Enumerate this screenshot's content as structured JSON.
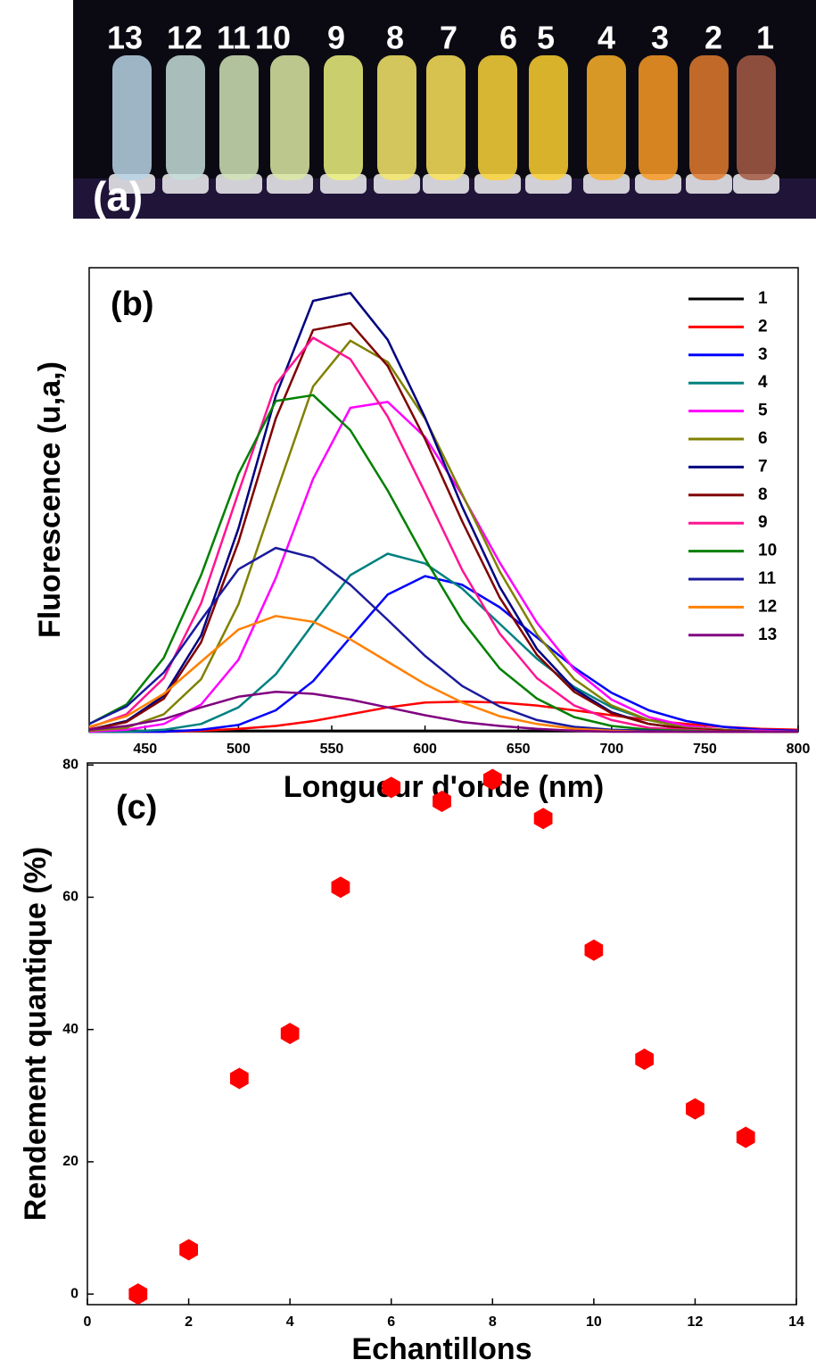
{
  "panel_a": {
    "label": "(a)",
    "vials": [
      {
        "label": "13",
        "color": "#b9d3e6"
      },
      {
        "label": "12",
        "color": "#c5ddd9"
      },
      {
        "label": "11",
        "color": "#cfe3b6"
      },
      {
        "label": "10",
        "color": "#dbe9a2"
      },
      {
        "label": "9",
        "color": "#edf17e"
      },
      {
        "label": "8",
        "color": "#f7e86a"
      },
      {
        "label": "7",
        "color": "#fbe35a"
      },
      {
        "label": "6",
        "color": "#fcd53a"
      },
      {
        "label": "5",
        "color": "#fdd030"
      },
      {
        "label": "4",
        "color": "#fbb12a"
      },
      {
        "label": "3",
        "color": "#f99a25"
      },
      {
        "label": "2",
        "color": "#e07a2e"
      },
      {
        "label": "1",
        "color": "#a55a45"
      }
    ]
  },
  "chart_data": [
    {
      "type": "line",
      "panel_label": "(b)",
      "xlabel": "Longueur d'onde (nm)",
      "ylabel": "Fluorescence (u,a,)",
      "x": [
        420,
        440,
        460,
        480,
        500,
        520,
        540,
        560,
        580,
        600,
        620,
        640,
        660,
        680,
        700,
        720,
        740,
        760,
        780,
        800
      ],
      "xlim": [
        420,
        800
      ],
      "ylim": [
        0,
        4.77
      ],
      "xticks": [
        450,
        500,
        550,
        600,
        650,
        700,
        750,
        800
      ],
      "legend": "upper right",
      "series": [
        {
          "name": "1",
          "color": "#000000",
          "values": [
            0.03,
            0.01,
            0.01,
            0.01,
            0.01,
            0.01,
            0.01,
            0.01,
            0.01,
            0.01,
            0.01,
            0.01,
            0.01,
            0.01,
            0.01,
            0.01,
            0.01,
            0.01,
            0.01,
            0.01
          ]
        },
        {
          "name": "2",
          "color": "#ff0000",
          "values": [
            0,
            0,
            0,
            0.01,
            0.03,
            0.06,
            0.11,
            0.18,
            0.25,
            0.3,
            0.31,
            0.3,
            0.27,
            0.22,
            0.17,
            0.12,
            0.08,
            0.05,
            0.03,
            0.02
          ]
        },
        {
          "name": "3",
          "color": "#0000ff",
          "values": [
            0,
            0,
            0,
            0.02,
            0.07,
            0.22,
            0.52,
            0.97,
            1.41,
            1.6,
            1.51,
            1.28,
            0.97,
            0.66,
            0.4,
            0.22,
            0.11,
            0.05,
            0.02,
            0.01
          ]
        },
        {
          "name": "4",
          "color": "#008080",
          "values": [
            0,
            0,
            0.02,
            0.08,
            0.25,
            0.59,
            1.11,
            1.61,
            1.83,
            1.73,
            1.47,
            1.11,
            0.75,
            0.46,
            0.25,
            0.12,
            0.05,
            0.02,
            0.01,
            0
          ]
        },
        {
          "name": "5",
          "color": "#ff00ff",
          "values": [
            0,
            0.02,
            0.08,
            0.28,
            0.74,
            1.58,
            2.6,
            3.33,
            3.39,
            3.03,
            2.43,
            1.74,
            1.12,
            0.64,
            0.33,
            0.15,
            0.06,
            0.02,
            0.01,
            0
          ]
        },
        {
          "name": "6",
          "color": "#808000",
          "values": [
            0.01,
            0.04,
            0.18,
            0.54,
            1.31,
            2.44,
            3.55,
            4.02,
            3.8,
            3.22,
            2.44,
            1.65,
            1,
            0.54,
            0.27,
            0.12,
            0.04,
            0.02,
            0,
            0
          ]
        },
        {
          "name": "7",
          "color": "#000080",
          "values": [
            0.02,
            0.11,
            0.37,
            0.99,
            2.09,
            3.45,
            4.43,
            4.51,
            4.03,
            3.23,
            2.31,
            1.49,
            0.85,
            0.44,
            0.2,
            0.08,
            0.03,
            0.01,
            0,
            0
          ]
        },
        {
          "name": "8",
          "color": "#800000",
          "values": [
            0.02,
            0.1,
            0.34,
            0.92,
            1.95,
            3.22,
            4.13,
            4.2,
            3.76,
            3.01,
            2.16,
            1.38,
            0.79,
            0.41,
            0.19,
            0.08,
            0.03,
            0.01,
            0,
            0
          ]
        },
        {
          "name": "9",
          "color": "#ff1493",
          "values": [
            0.04,
            0.18,
            0.55,
            1.32,
            2.46,
            3.57,
            4.05,
            3.83,
            3.24,
            2.46,
            1.66,
            1.01,
            0.55,
            0.27,
            0.12,
            0.04,
            0.02,
            0,
            0,
            0
          ]
        },
        {
          "name": "10",
          "color": "#008000",
          "values": [
            0.08,
            0.28,
            0.76,
            1.61,
            2.65,
            3.4,
            3.46,
            3.1,
            2.48,
            1.78,
            1.14,
            0.65,
            0.34,
            0.15,
            0.06,
            0.02,
            0.01,
            0,
            0,
            0
          ]
        },
        {
          "name": "11",
          "color": "#1a1a9e",
          "values": [
            0.08,
            0.26,
            0.61,
            1.15,
            1.67,
            1.89,
            1.79,
            1.51,
            1.15,
            0.78,
            0.47,
            0.26,
            0.12,
            0.05,
            0.02,
            0.01,
            0,
            0,
            0,
            0
          ]
        },
        {
          "name": "12",
          "color": "#ff8000",
          "values": [
            0.05,
            0.16,
            0.39,
            0.72,
            1.05,
            1.19,
            1.13,
            0.95,
            0.72,
            0.49,
            0.3,
            0.16,
            0.08,
            0.03,
            0.01,
            0,
            0,
            0,
            0,
            0
          ]
        },
        {
          "name": "13",
          "color": "#800080",
          "values": [
            0.02,
            0.06,
            0.13,
            0.25,
            0.36,
            0.41,
            0.39,
            0.33,
            0.25,
            0.17,
            0.1,
            0.06,
            0.03,
            0.01,
            0,
            0,
            0,
            0,
            0,
            0
          ]
        }
      ]
    },
    {
      "type": "scatter",
      "panel_label": "(c)",
      "xlabel": "Echantillons",
      "ylabel": "Rendement quantique (%)",
      "x": [
        1,
        2,
        3,
        4,
        5,
        6,
        7,
        8,
        9,
        10,
        11,
        12,
        13
      ],
      "y": [
        0,
        6.7,
        32.6,
        39.4,
        61.5,
        76.6,
        74.5,
        77.8,
        71.9,
        52,
        35.5,
        28,
        23.7
      ],
      "color": "#ff0000",
      "xlim": [
        0,
        14
      ],
      "ylim": [
        -1.6,
        80.3
      ],
      "xticks": [
        0,
        2,
        4,
        6,
        8,
        10,
        12,
        14
      ],
      "yticks": [
        0,
        20,
        40,
        60,
        80
      ]
    }
  ]
}
